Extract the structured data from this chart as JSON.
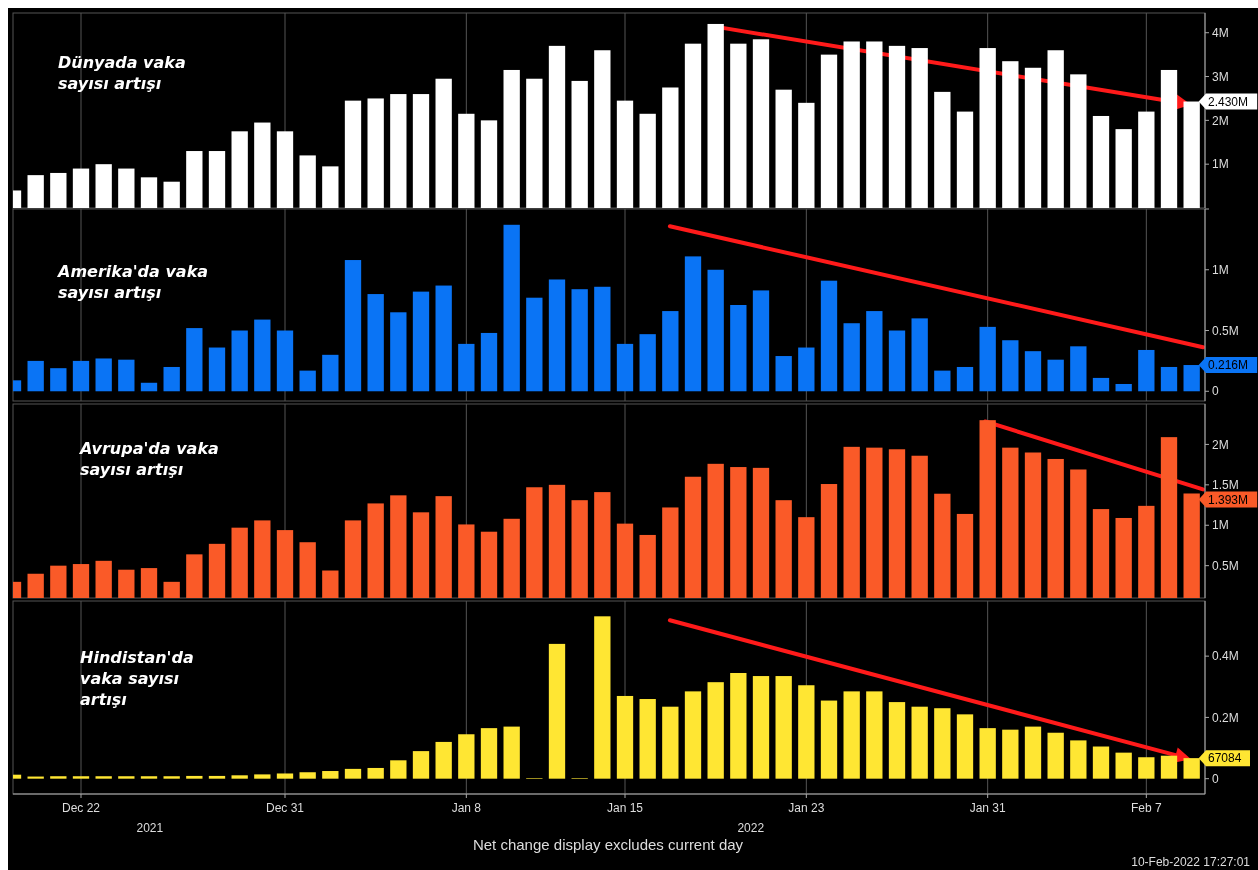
{
  "chart_data": [
    {
      "type": "bar",
      "title": "Dünyada vaka sayısı artışı",
      "color": "#ffffff",
      "grid": "x",
      "tick_labels": "y",
      "xlim": [
        "2021-12-19",
        "2022-02-09T12:00"
      ],
      "ylim": [
        0,
        4.45
      ],
      "yticks": [
        {
          "value": 1,
          "label": "1M"
        },
        {
          "value": 2,
          "label": "2M"
        },
        {
          "value": 3,
          "label": "3M"
        },
        {
          "value": 4,
          "label": "4M"
        }
      ],
      "xticks": [
        {
          "value": "2021-12-22",
          "label": null
        },
        {
          "value": "2021-12-31",
          "label": null
        },
        {
          "value": "2022-01-08",
          "label": null
        },
        {
          "value": "2022-01-15",
          "label": null
        },
        {
          "value": "2022-01-23",
          "label": null
        },
        {
          "value": "2022-01-31",
          "label": null
        },
        {
          "value": "2022-02-07",
          "label": null
        }
      ],
      "x": [
        "2021-12-19",
        "2021-12-20",
        "2021-12-21",
        "2021-12-22",
        "2021-12-23",
        "2021-12-24",
        "2021-12-25",
        "2021-12-26",
        "2021-12-27",
        "2021-12-28",
        "2021-12-29",
        "2021-12-30",
        "2021-12-31",
        "2022-01-01",
        "2022-01-02",
        "2022-01-03",
        "2022-01-04",
        "2022-01-05",
        "2022-01-06",
        "2022-01-07",
        "2022-01-08",
        "2022-01-09",
        "2022-01-10",
        "2022-01-11",
        "2022-01-12",
        "2022-01-13",
        "2022-01-14",
        "2022-01-15",
        "2022-01-16",
        "2022-01-17",
        "2022-01-18",
        "2022-01-19",
        "2022-01-20",
        "2022-01-21",
        "2022-01-22",
        "2022-01-23",
        "2022-01-24",
        "2022-01-25",
        "2022-01-26",
        "2022-01-27",
        "2022-01-28",
        "2022-01-29",
        "2022-01-30",
        "2022-01-31",
        "2022-02-01",
        "2022-02-02",
        "2022-02-03",
        "2022-02-04",
        "2022-02-05",
        "2022-02-06",
        "2022-02-07",
        "2022-02-08",
        "2022-02-09"
      ],
      "values": [
        0.4,
        0.75,
        0.8,
        0.9,
        1.0,
        0.9,
        0.7,
        0.6,
        1.3,
        1.3,
        1.75,
        1.95,
        1.75,
        1.2,
        0.95,
        2.45,
        2.5,
        2.6,
        2.6,
        2.95,
        2.15,
        2.0,
        3.15,
        2.95,
        3.7,
        2.9,
        3.6,
        2.45,
        2.15,
        2.75,
        3.75,
        4.2,
        3.75,
        3.85,
        2.7,
        2.4,
        3.5,
        3.8,
        3.8,
        3.7,
        3.65,
        2.65,
        2.2,
        3.65,
        3.35,
        3.2,
        3.6,
        3.05,
        2.1,
        1.8,
        2.2,
        3.15,
        2.43
      ],
      "annotations": [
        {
          "text": "2.430M",
          "x": "2022-02-09",
          "y": 2.43
        }
      ]
    },
    {
      "type": "bar",
      "title": "Amerika'da vaka sayısı artışı",
      "color": "#0a74f5",
      "grid": "x",
      "tick_labels": "y",
      "xlim": [
        "2021-12-19",
        "2022-02-09T12:00"
      ],
      "ylim": [
        -0.08,
        1.5
      ],
      "yticks": [
        0,
        {
          "value": 0.5,
          "label": "0.5M"
        },
        {
          "value": 1,
          "label": "1M"
        },
        {
          "value": 1.5,
          "label": null
        }
      ],
      "xticks": [
        {
          "value": "2021-12-22",
          "label": null
        },
        {
          "value": "2021-12-31",
          "label": null
        },
        {
          "value": "2022-01-08",
          "label": null
        },
        {
          "value": "2022-01-15",
          "label": null
        },
        {
          "value": "2022-01-23",
          "label": null
        },
        {
          "value": "2022-01-31",
          "label": null
        },
        {
          "value": "2022-02-07",
          "label": null
        }
      ],
      "x": [
        "2021-12-19",
        "2021-12-20",
        "2021-12-21",
        "2021-12-22",
        "2021-12-23",
        "2021-12-24",
        "2021-12-25",
        "2021-12-26",
        "2021-12-27",
        "2021-12-28",
        "2021-12-29",
        "2021-12-30",
        "2021-12-31",
        "2022-01-01",
        "2022-01-02",
        "2022-01-03",
        "2022-01-04",
        "2022-01-05",
        "2022-01-06",
        "2022-01-07",
        "2022-01-08",
        "2022-01-09",
        "2022-01-10",
        "2022-01-11",
        "2022-01-12",
        "2022-01-13",
        "2022-01-14",
        "2022-01-15",
        "2022-01-16",
        "2022-01-17",
        "2022-01-18",
        "2022-01-19",
        "2022-01-20",
        "2022-01-21",
        "2022-01-22",
        "2022-01-23",
        "2022-01-24",
        "2022-01-25",
        "2022-01-26",
        "2022-01-27",
        "2022-01-28",
        "2022-01-29",
        "2022-01-30",
        "2022-01-31",
        "2022-02-01",
        "2022-02-02",
        "2022-02-03",
        "2022-02-04",
        "2022-02-05",
        "2022-02-06",
        "2022-02-07",
        "2022-02-08",
        "2022-02-09"
      ],
      "values": [
        0.09,
        0.25,
        0.19,
        0.25,
        0.27,
        0.26,
        0.07,
        0.2,
        0.52,
        0.36,
        0.5,
        0.59,
        0.5,
        0.17,
        0.3,
        1.08,
        0.8,
        0.65,
        0.82,
        0.87,
        0.39,
        0.48,
        1.37,
        0.77,
        0.92,
        0.84,
        0.86,
        0.39,
        0.47,
        0.66,
        1.11,
        1.0,
        0.71,
        0.83,
        0.29,
        0.36,
        0.91,
        0.56,
        0.66,
        0.5,
        0.6,
        0.17,
        0.2,
        0.53,
        0.42,
        0.33,
        0.26,
        0.37,
        0.11,
        0.06,
        0.34,
        0.2,
        0.216
      ],
      "annotations": [
        {
          "text": "0.216M",
          "x": "2022-02-09",
          "y": 0.216
        }
      ]
    },
    {
      "type": "bar",
      "title": "Avrupa'da vaka sayısı artışı",
      "color": "#fa5a28",
      "grid": "x",
      "tick_labels": "y",
      "xlim": [
        "2021-12-19",
        "2022-02-09T12:00"
      ],
      "ylim": [
        0.1,
        2.5
      ],
      "yticks": [
        {
          "value": 0.5,
          "label": "0.5M"
        },
        {
          "value": 1,
          "label": "1M"
        },
        {
          "value": 1.5,
          "label": "1.5M"
        },
        {
          "value": 2,
          "label": "2M"
        }
      ],
      "xticks": [
        {
          "value": "2021-12-22",
          "label": null
        },
        {
          "value": "2021-12-31",
          "label": null
        },
        {
          "value": "2022-01-08",
          "label": null
        },
        {
          "value": "2022-01-15",
          "label": null
        },
        {
          "value": "2022-01-23",
          "label": null
        },
        {
          "value": "2022-01-31",
          "label": null
        },
        {
          "value": "2022-02-07",
          "label": null
        }
      ],
      "x": [
        "2021-12-19",
        "2021-12-20",
        "2021-12-21",
        "2021-12-22",
        "2021-12-23",
        "2021-12-24",
        "2021-12-25",
        "2021-12-26",
        "2021-12-27",
        "2021-12-28",
        "2021-12-29",
        "2021-12-30",
        "2021-12-31",
        "2022-01-01",
        "2022-01-02",
        "2022-01-03",
        "2022-01-04",
        "2022-01-05",
        "2022-01-06",
        "2022-01-07",
        "2022-01-08",
        "2022-01-09",
        "2022-01-10",
        "2022-01-11",
        "2022-01-12",
        "2022-01-13",
        "2022-01-14",
        "2022-01-15",
        "2022-01-16",
        "2022-01-17",
        "2022-01-18",
        "2022-01-19",
        "2022-01-20",
        "2022-01-21",
        "2022-01-22",
        "2022-01-23",
        "2022-01-24",
        "2022-01-25",
        "2022-01-26",
        "2022-01-27",
        "2022-01-28",
        "2022-01-29",
        "2022-01-30",
        "2022-01-31",
        "2022-02-01",
        "2022-02-02",
        "2022-02-03",
        "2022-02-04",
        "2022-02-05",
        "2022-02-06",
        "2022-02-07",
        "2022-02-08",
        "2022-02-09"
      ],
      "values": [
        0.3,
        0.4,
        0.5,
        0.52,
        0.56,
        0.45,
        0.47,
        0.3,
        0.64,
        0.77,
        0.97,
        1.06,
        0.94,
        0.79,
        0.44,
        1.06,
        1.27,
        1.37,
        1.16,
        1.36,
        1.01,
        0.92,
        1.08,
        1.47,
        1.5,
        1.31,
        1.41,
        1.02,
        0.88,
        1.22,
        1.6,
        1.76,
        1.72,
        1.71,
        1.31,
        1.1,
        1.51,
        1.97,
        1.96,
        1.94,
        1.86,
        1.39,
        1.14,
        2.3,
        1.96,
        1.9,
        1.82,
        1.69,
        1.2,
        1.09,
        1.24,
        2.09,
        1.393
      ],
      "annotations": [
        {
          "text": "1.393M",
          "x": "2022-02-09",
          "y": 1.393
        }
      ]
    },
    {
      "type": "bar",
      "title": "Hindistan'da vaka sayısı artışı",
      "color": "#ffe633",
      "grid": "x",
      "xlim": [
        "2021-12-19",
        "2022-02-09T12:00"
      ],
      "ylim": [
        -50000,
        580000
      ],
      "yticks": [
        0,
        {
          "value": 200000,
          "label": "0.2M"
        },
        {
          "value": 400000,
          "label": "0.4M"
        }
      ],
      "xticks": [
        {
          "value": "2021-12-22",
          "label": "Dec 22"
        },
        {
          "value": "2021-12-31",
          "label": "Dec 31"
        },
        {
          "value": "2022-01-08",
          "label": "Jan 8"
        },
        {
          "value": "2022-01-15",
          "label": "Jan 15"
        },
        {
          "value": "2022-01-23",
          "label": "Jan 23"
        },
        {
          "value": "2022-01-31",
          "label": "Jan 31"
        },
        {
          "value": "2022-02-07",
          "label": "Feb 7"
        }
      ],
      "x": [
        "2021-12-19",
        "2021-12-20",
        "2021-12-21",
        "2021-12-22",
        "2021-12-23",
        "2021-12-24",
        "2021-12-25",
        "2021-12-26",
        "2021-12-27",
        "2021-12-28",
        "2021-12-29",
        "2021-12-30",
        "2021-12-31",
        "2022-01-01",
        "2022-01-02",
        "2022-01-03",
        "2022-01-04",
        "2022-01-05",
        "2022-01-06",
        "2022-01-07",
        "2022-01-08",
        "2022-01-09",
        "2022-01-10",
        "2022-01-11",
        "2022-01-12",
        "2022-01-13",
        "2022-01-14",
        "2022-01-15",
        "2022-01-16",
        "2022-01-17",
        "2022-01-18",
        "2022-01-19",
        "2022-01-20",
        "2022-01-21",
        "2022-01-22",
        "2022-01-23",
        "2022-01-24",
        "2022-01-25",
        "2022-01-26",
        "2022-01-27",
        "2022-01-28",
        "2022-01-29",
        "2022-01-30",
        "2022-01-31",
        "2022-02-01",
        "2022-02-02",
        "2022-02-03",
        "2022-02-04",
        "2022-02-05",
        "2022-02-06",
        "2022-02-07",
        "2022-02-08",
        "2022-02-09"
      ],
      "values": [
        13000,
        7000,
        8000,
        8000,
        8000,
        8000,
        8000,
        8000,
        9000,
        9000,
        11000,
        14000,
        17000,
        21000,
        25000,
        32000,
        35000,
        60000,
        90000,
        120000,
        145000,
        165000,
        170000,
        2000,
        440000,
        2000,
        530000,
        270000,
        260000,
        235000,
        285000,
        315000,
        345000,
        335000,
        335000,
        305000,
        255000,
        285000,
        285000,
        250000,
        235000,
        230000,
        210000,
        165000,
        160000,
        170000,
        150000,
        125000,
        105000,
        85000,
        70000,
        75000,
        67084
      ],
      "annotations": [
        {
          "text": "67084",
          "x": "2022-02-09",
          "y": 67084
        },
        "2021",
        "2022",
        "Net change display excludes current day",
        "10-Feb-2022 17:27:01"
      ]
    }
  ]
}
